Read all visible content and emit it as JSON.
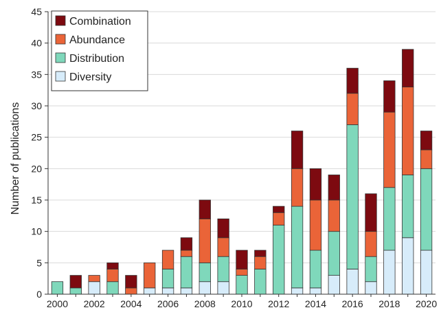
{
  "chart_data": {
    "type": "bar",
    "stacked": true,
    "ylabel": "Number of publications",
    "xlabel": "",
    "ylim": [
      0,
      45
    ],
    "yticks": [
      0,
      5,
      10,
      15,
      20,
      25,
      30,
      35,
      40,
      45
    ],
    "categories": [
      2000,
      2001,
      2002,
      2003,
      2004,
      2005,
      2006,
      2007,
      2008,
      2009,
      2010,
      2011,
      2012,
      2013,
      2014,
      2015,
      2016,
      2017,
      2018,
      2019,
      2020
    ],
    "xtick_labels": [
      "2000",
      "2002",
      "2004",
      "2006",
      "2008",
      "2010",
      "2012",
      "2014",
      "2016",
      "2018",
      "2020"
    ],
    "grid": true,
    "legend_position": "top-left",
    "series": [
      {
        "name": "Diversity",
        "color": "#d7ecfa",
        "values": [
          0,
          0,
          2,
          0,
          0,
          1,
          1,
          1,
          2,
          2,
          0,
          0,
          0,
          1,
          1,
          3,
          4,
          2,
          7,
          9,
          7
        ]
      },
      {
        "name": "Distribution",
        "color": "#7fd8bb",
        "values": [
          2,
          1,
          0,
          2,
          0,
          0,
          3,
          5,
          3,
          4,
          3,
          4,
          11,
          13,
          6,
          7,
          23,
          4,
          10,
          10,
          13
        ]
      },
      {
        "name": "Abundance",
        "color": "#ea6438",
        "values": [
          0,
          0,
          1,
          2,
          1,
          4,
          3,
          1,
          7,
          3,
          1,
          2,
          2,
          6,
          8,
          5,
          5,
          4,
          12,
          14,
          3
        ]
      },
      {
        "name": "Combination",
        "color": "#7d0a10",
        "values": [
          0,
          2,
          0,
          1,
          2,
          0,
          0,
          2,
          3,
          3,
          3,
          1,
          1,
          6,
          5,
          4,
          4,
          6,
          5,
          6,
          3
        ]
      }
    ],
    "legend_order": [
      "Combination",
      "Abundance",
      "Distribution",
      "Diversity"
    ]
  }
}
